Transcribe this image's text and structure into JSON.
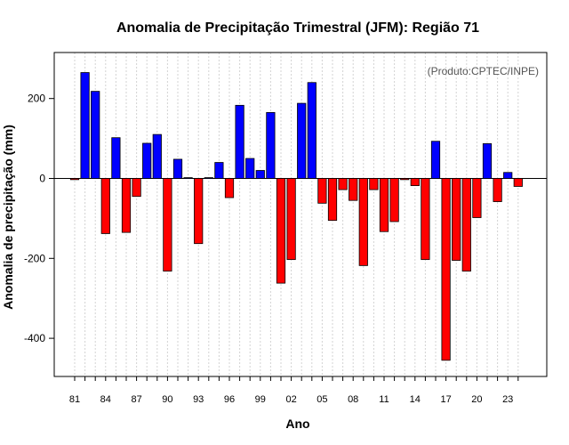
{
  "chart_data": {
    "type": "bar",
    "title": "Anomalia de Precipitação Trimestral (JFM): Região 71",
    "xlabel": "Ano",
    "ylabel": "Anomalia de precipitação (mm)",
    "annotation": "(Produto:CPTEC/INPE)",
    "ylim": [
      -500,
      315
    ],
    "yticks": [
      -400,
      -200,
      0,
      200
    ],
    "ytick_labels": [
      "-400",
      "-200",
      "0",
      "200"
    ],
    "x": [
      "81",
      "82",
      "83",
      "84",
      "85",
      "86",
      "87",
      "88",
      "89",
      "90",
      "91",
      "92",
      "93",
      "94",
      "95",
      "96",
      "97",
      "98",
      "99",
      "00",
      "01",
      "02",
      "03",
      "04",
      "05",
      "06",
      "07",
      "08",
      "09",
      "10",
      "11",
      "12",
      "13",
      "14",
      "15",
      "16",
      "17",
      "18",
      "19",
      "20",
      "21",
      "22",
      "23",
      "24"
    ],
    "xtick_labels": [
      "81",
      "84",
      "87",
      "90",
      "93",
      "96",
      "99",
      "02",
      "05",
      "08",
      "11",
      "14",
      "17",
      "20",
      "23"
    ],
    "values": [
      -3,
      265,
      218,
      -138,
      102,
      -135,
      -45,
      88,
      110,
      -232,
      48,
      2,
      -163,
      2,
      40,
      -48,
      183,
      50,
      20,
      165,
      -262,
      -203,
      188,
      240,
      -62,
      -105,
      -28,
      -55,
      -218,
      -28,
      -133,
      -108,
      -3,
      -18,
      -203,
      93,
      -455,
      -205,
      -232,
      -98,
      87,
      -58,
      15,
      -20
    ],
    "colors": {
      "positive": "#0000ff",
      "negative": "#ff0000",
      "border": "#000000",
      "grid": "#d3d3d3"
    }
  }
}
